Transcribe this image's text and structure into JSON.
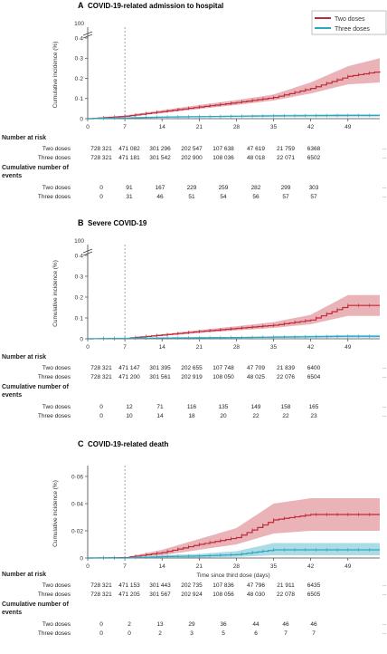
{
  "colors": {
    "two_doses_line": "#c0283c",
    "two_doses_band": "#e39a9f",
    "three_doses_line": "#2aa8bf",
    "three_doses_band": "#8fd0de",
    "grid_axis": "#444444",
    "marker_line": "#777777"
  },
  "legend": {
    "two": "Two doses",
    "three": "Three doses"
  },
  "shared": {
    "x_ticks": [
      "0",
      "7",
      "14",
      "21",
      "28",
      "35",
      "42",
      "49"
    ],
    "x_label": "Time since third dose (days)",
    "ellipsis": "··",
    "marker_day": 7
  },
  "panels": [
    {
      "letter": "A",
      "title": "COVID-19-related admission to hospital",
      "y_label": "Cumulative incidence (%)",
      "y_ticks": [
        "0",
        "0·1",
        "0·2",
        "0·3",
        "0·4"
      ],
      "table": {
        "at_risk_head": "Number at risk",
        "events_head": "Cumulative number of events",
        "row_two": "Two doses",
        "row_three": "Three doses",
        "at_risk_two": [
          "728 321",
          "471 082",
          "301 296",
          "202 547",
          "107 638",
          "47 619",
          "21 759",
          "6368"
        ],
        "at_risk_three": [
          "728 321",
          "471 181",
          "301 542",
          "202 900",
          "108 036",
          "48 018",
          "22 071",
          "6502"
        ],
        "events_two": [
          "0",
          "91",
          "167",
          "229",
          "259",
          "282",
          "299",
          "303"
        ],
        "events_three": [
          "0",
          "31",
          "46",
          "51",
          "54",
          "56",
          "57",
          "57"
        ]
      }
    },
    {
      "letter": "B",
      "title": "Severe COVID-19",
      "y_label": "Cumulative incidence (%)",
      "y_ticks": [
        "0",
        "0·1",
        "0·2",
        "0·3",
        "0·4"
      ],
      "table": {
        "at_risk_head": "Number at risk",
        "events_head": "Cumulative number of events",
        "row_two": "Two doses",
        "row_three": "Three doses",
        "at_risk_two": [
          "728 321",
          "471 147",
          "301 395",
          "202 655",
          "107 748",
          "47 709",
          "21 839",
          "6400"
        ],
        "at_risk_three": [
          "728 321",
          "471 200",
          "301 561",
          "202 919",
          "108 050",
          "48 025",
          "22 076",
          "6504"
        ],
        "events_two": [
          "0",
          "12",
          "71",
          "116",
          "135",
          "149",
          "158",
          "165"
        ],
        "events_three": [
          "0",
          "10",
          "14",
          "18",
          "20",
          "22",
          "22",
          "23"
        ]
      }
    },
    {
      "letter": "C",
      "title": "COVID-19-related death",
      "y_label": "Cumulative incidence (%)",
      "y_ticks": [
        "0",
        "0·02",
        "0·04",
        "0·06"
      ],
      "table": {
        "at_risk_head": "Number at risk",
        "events_head": "Cumulative number of events",
        "row_two": "Two doses",
        "row_three": "Three doses",
        "at_risk_two": [
          "728 321",
          "471 153",
          "301 443",
          "202 735",
          "107 836",
          "47 796",
          "21 911",
          "6435"
        ],
        "at_risk_three": [
          "728 321",
          "471 205",
          "301 567",
          "202 924",
          "108 056",
          "48 030",
          "22 078",
          "6505"
        ],
        "events_two": [
          "0",
          "2",
          "13",
          "29",
          "36",
          "44",
          "46",
          "46"
        ],
        "events_three": [
          "0",
          "0",
          "2",
          "3",
          "5",
          "6",
          "7",
          "7"
        ]
      }
    }
  ],
  "chart_data": [
    {
      "type": "line",
      "title": "COVID-19-related admission to hospital",
      "xlabel": "",
      "ylabel": "Cumulative incidence (%)",
      "xlim": [
        0,
        55
      ],
      "ylim": [
        0,
        0.4
      ],
      "y_axis_break": true,
      "x": [
        0,
        7,
        14,
        21,
        28,
        35,
        42,
        49,
        55
      ],
      "series": [
        {
          "name": "Two doses",
          "values": [
            0,
            0.012,
            0.035,
            0.058,
            0.08,
            0.105,
            0.15,
            0.21,
            0.235
          ],
          "ci_low": [
            0,
            0.008,
            0.028,
            0.048,
            0.068,
            0.09,
            0.125,
            0.17,
            0.18
          ],
          "ci_high": [
            0,
            0.016,
            0.042,
            0.068,
            0.092,
            0.12,
            0.18,
            0.26,
            0.3
          ]
        },
        {
          "name": "Three doses",
          "values": [
            0,
            0.004,
            0.008,
            0.01,
            0.012,
            0.014,
            0.015,
            0.016,
            0.016
          ],
          "ci_low": [
            0,
            0.002,
            0.005,
            0.007,
            0.008,
            0.009,
            0.01,
            0.01,
            0.01
          ],
          "ci_high": [
            0,
            0.006,
            0.011,
            0.013,
            0.016,
            0.019,
            0.021,
            0.022,
            0.022
          ]
        }
      ]
    },
    {
      "type": "line",
      "title": "Severe COVID-19",
      "xlabel": "",
      "ylabel": "Cumulative incidence (%)",
      "xlim": [
        0,
        55
      ],
      "ylim": [
        0,
        0.4
      ],
      "y_axis_break": true,
      "x": [
        0,
        7,
        14,
        21,
        28,
        35,
        42,
        49,
        55
      ],
      "series": [
        {
          "name": "Two doses",
          "values": [
            0,
            0.002,
            0.018,
            0.035,
            0.05,
            0.065,
            0.09,
            0.16,
            0.16
          ],
          "ci_low": [
            0,
            0.001,
            0.014,
            0.028,
            0.04,
            0.052,
            0.07,
            0.11,
            0.11
          ],
          "ci_high": [
            0,
            0.004,
            0.022,
            0.042,
            0.06,
            0.08,
            0.115,
            0.21,
            0.21
          ]
        },
        {
          "name": "Three doses",
          "values": [
            0,
            0.002,
            0.004,
            0.005,
            0.006,
            0.008,
            0.01,
            0.012,
            0.012
          ],
          "ci_low": [
            0,
            0.001,
            0.002,
            0.003,
            0.003,
            0.004,
            0.005,
            0.006,
            0.006
          ],
          "ci_high": [
            0,
            0.003,
            0.006,
            0.008,
            0.009,
            0.012,
            0.015,
            0.018,
            0.018
          ]
        }
      ]
    },
    {
      "type": "line",
      "title": "COVID-19-related death",
      "xlabel": "Time since third dose (days)",
      "ylabel": "Cumulative incidence (%)",
      "xlim": [
        0,
        55
      ],
      "ylim": [
        0,
        0.06
      ],
      "x": [
        0,
        7,
        14,
        21,
        28,
        35,
        42,
        49,
        55
      ],
      "series": [
        {
          "name": "Two doses",
          "values": [
            0,
            0.0003,
            0.004,
            0.01,
            0.015,
            0.028,
            0.032,
            0.032,
            0.032
          ],
          "ci_low": [
            0,
            0.0002,
            0.002,
            0.006,
            0.01,
            0.018,
            0.02,
            0.02,
            0.02
          ],
          "ci_high": [
            0,
            0.0005,
            0.006,
            0.014,
            0.022,
            0.04,
            0.044,
            0.044,
            0.044
          ]
        },
        {
          "name": "Three doses",
          "values": [
            0,
            0,
            0.001,
            0.0015,
            0.0025,
            0.006,
            0.006,
            0.006,
            0.006
          ],
          "ci_low": [
            0,
            0,
            0.0002,
            0.0004,
            0.0008,
            0.002,
            0.002,
            0.002,
            0.002
          ],
          "ci_high": [
            0,
            0,
            0.002,
            0.003,
            0.005,
            0.011,
            0.011,
            0.011,
            0.011
          ]
        }
      ]
    }
  ]
}
